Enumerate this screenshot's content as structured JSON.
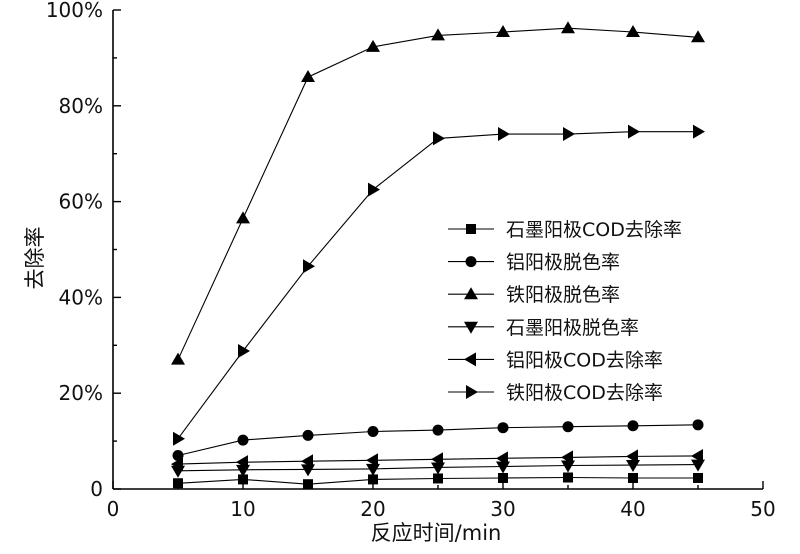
{
  "chart_data": {
    "type": "line",
    "title": "",
    "xlabel": "反应时间/min",
    "ylabel": "去除率",
    "xlim": [
      0,
      50
    ],
    "ylim": [
      0,
      100
    ],
    "x_ticks": [
      0,
      10,
      20,
      30,
      40,
      50
    ],
    "x_tick_labels": [
      "0",
      "10",
      "20",
      "30",
      "40",
      "50"
    ],
    "y_ticks": [
      0,
      20,
      40,
      60,
      80,
      100
    ],
    "y_tick_labels": [
      "0",
      "20%",
      "40%",
      "60%",
      "80%",
      "100%"
    ],
    "grid": false,
    "legend_position": "right",
    "series": [
      {
        "name": "石墨阳极COD去除率",
        "marker": "square",
        "x": [
          5,
          10,
          15,
          20,
          25,
          30,
          35,
          40,
          45
        ],
        "values": [
          1.2,
          2.0,
          1.0,
          2.0,
          2.2,
          2.3,
          2.4,
          2.3,
          2.3
        ]
      },
      {
        "name": "铝阳极脱色率",
        "marker": "circle",
        "x": [
          5,
          10,
          15,
          20,
          25,
          30,
          35,
          40,
          45
        ],
        "values": [
          7.0,
          10.2,
          11.2,
          12.0,
          12.3,
          12.8,
          13.0,
          13.2,
          13.4
        ]
      },
      {
        "name": "铁阳极脱色率",
        "marker": "triangle-up",
        "x": [
          5,
          10,
          15,
          20,
          25,
          30,
          35,
          40,
          45
        ],
        "values": [
          27.0,
          56.5,
          86.0,
          92.3,
          94.7,
          95.4,
          96.2,
          95.4,
          94.3
        ]
      },
      {
        "name": "石墨阳极脱色率",
        "marker": "triangle-down",
        "x": [
          5,
          10,
          15,
          20,
          25,
          30,
          35,
          40,
          45
        ],
        "values": [
          3.8,
          4.0,
          4.1,
          4.2,
          4.5,
          4.7,
          4.9,
          5.0,
          5.1
        ]
      },
      {
        "name": "铝阳极COD去除率",
        "marker": "triangle-left",
        "x": [
          5,
          10,
          15,
          20,
          25,
          30,
          35,
          40,
          45
        ],
        "values": [
          5.2,
          5.6,
          5.8,
          6.0,
          6.2,
          6.4,
          6.6,
          6.8,
          6.9
        ]
      },
      {
        "name": "铁阳极COD去除率",
        "marker": "triangle-right",
        "x": [
          5,
          10,
          15,
          20,
          25,
          30,
          35,
          40,
          45
        ],
        "values": [
          10.5,
          28.8,
          46.5,
          62.5,
          73.2,
          74.1,
          74.1,
          74.6,
          74.6
        ]
      }
    ]
  }
}
